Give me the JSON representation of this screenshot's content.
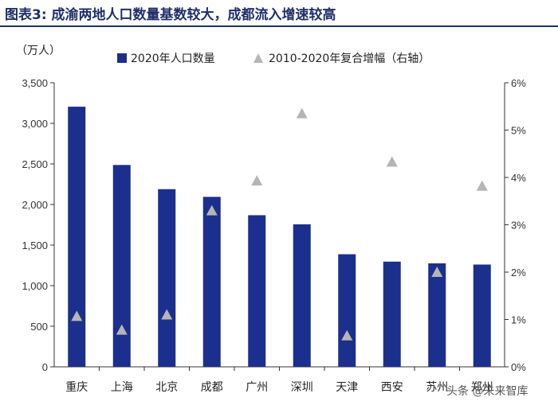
{
  "figure_title": "图表3:   成渝两地人口数量基数较大，成都流入增速较高",
  "unit_label": "（万人）",
  "watermark": "头条 @未来智库",
  "colors": {
    "bar": "#1b2f8c",
    "marker": "#b5b5b5",
    "axis": "#333333",
    "title": "#1f2f6b"
  },
  "chart_data": {
    "type": "bar",
    "categories": [
      "重庆",
      "上海",
      "北京",
      "成都",
      "广州",
      "深圳",
      "天津",
      "西安",
      "苏州",
      "郑州"
    ],
    "series": [
      {
        "name": "2020年人口数量",
        "kind": "bar",
        "axis": "left",
        "values": [
          3205,
          2487,
          2189,
          2094,
          1868,
          1756,
          1387,
          1296,
          1275,
          1260
        ]
      },
      {
        "name": "2010-2020年复合增幅（右轴）",
        "kind": "marker",
        "marker": "triangle",
        "axis": "right",
        "values": [
          1.07,
          0.78,
          1.1,
          3.3,
          3.93,
          5.35,
          0.66,
          4.33,
          2.0,
          3.82
        ]
      }
    ],
    "ylim_left": [
      0,
      3500
    ],
    "yticks_left": [
      "0",
      "500",
      "1,000",
      "1,500",
      "2,000",
      "2,500",
      "3,000",
      "3,500"
    ],
    "ylim_right": [
      0,
      6
    ],
    "yticks_right": [
      "0%",
      "1%",
      "2%",
      "3%",
      "4%",
      "5%",
      "6%"
    ],
    "legend_position": "top",
    "grid": false
  }
}
